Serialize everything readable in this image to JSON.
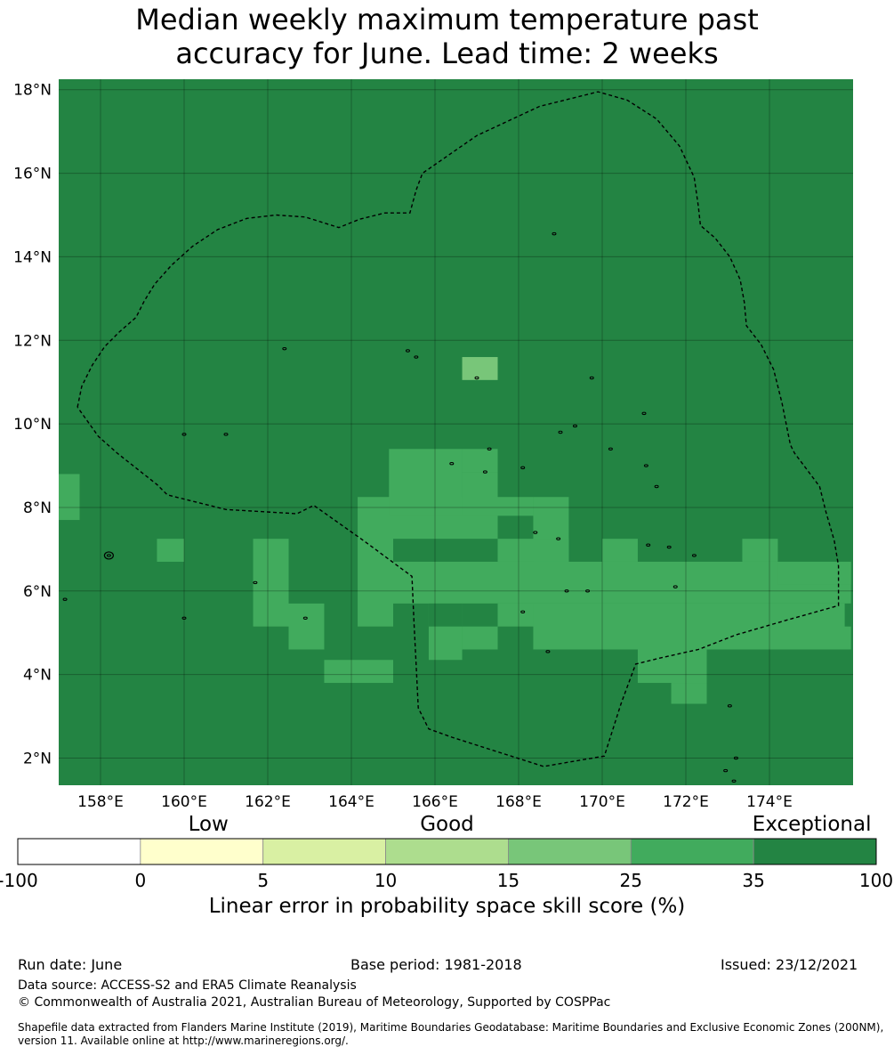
{
  "title_line1": "Median weekly maximum temperature past",
  "title_line2": "accuracy for June. Lead time: 2 weeks",
  "map": {
    "lon_range": [
      157.0,
      176.0
    ],
    "lat_range": [
      1.35,
      18.25
    ],
    "lon_ticks": [
      {
        "value": 158,
        "label": "158°E"
      },
      {
        "value": 160,
        "label": "160°E"
      },
      {
        "value": 162,
        "label": "162°E"
      },
      {
        "value": 164,
        "label": "164°E"
      },
      {
        "value": 166,
        "label": "166°E"
      },
      {
        "value": 168,
        "label": "168°E"
      },
      {
        "value": 170,
        "label": "170°E"
      },
      {
        "value": 172,
        "label": "172°E"
      },
      {
        "value": 174,
        "label": "174°E"
      }
    ],
    "lat_ticks": [
      {
        "value": 18,
        "label": "18°N"
      },
      {
        "value": 16,
        "label": "16°N"
      },
      {
        "value": 14,
        "label": "14°N"
      },
      {
        "value": 12,
        "label": "12°N"
      },
      {
        "value": 10,
        "label": "10°N"
      },
      {
        "value": 8,
        "label": "8°N"
      },
      {
        "value": 6,
        "label": "6°N"
      },
      {
        "value": 4,
        "label": "4°N"
      },
      {
        "value": 2,
        "label": "2°N"
      }
    ],
    "background_color": "#238443",
    "cells_25_35": [
      [
        157.0,
        157.5,
        7.7,
        8.8
      ],
      [
        159.35,
        160.0,
        6.7,
        7.25
      ],
      [
        161.65,
        162.5,
        5.15,
        7.25
      ],
      [
        162.5,
        163.35,
        4.6,
        5.7
      ],
      [
        163.35,
        165.0,
        3.8,
        4.35
      ],
      [
        164.15,
        165.0,
        5.15,
        8.25
      ],
      [
        165.0,
        167.5,
        7.25,
        8.25
      ],
      [
        164.9,
        166.65,
        7.8,
        9.4
      ],
      [
        166.65,
        167.5,
        7.8,
        8.85
      ],
      [
        166.65,
        167.5,
        8.85,
        9.4
      ],
      [
        165.0,
        175.95,
        5.7,
        6.7
      ],
      [
        167.5,
        168.35,
        7.8,
        8.25
      ],
      [
        168.35,
        169.2,
        6.7,
        8.25
      ],
      [
        167.5,
        169.2,
        6.7,
        7.25
      ],
      [
        166.65,
        167.5,
        4.6,
        5.7
      ],
      [
        165.85,
        166.65,
        4.35,
        5.7
      ],
      [
        167.5,
        170.0,
        5.15,
        5.7
      ],
      [
        168.35,
        175.95,
        4.6,
        5.7
      ],
      [
        170.0,
        170.85,
        6.7,
        7.25
      ],
      [
        173.35,
        174.2,
        6.7,
        7.25
      ],
      [
        170.85,
        172.5,
        3.8,
        4.6
      ],
      [
        171.65,
        172.5,
        3.3,
        3.8
      ],
      [
        174.2,
        175.95,
        6.15,
        6.7
      ]
    ],
    "cells_15_25": [
      [
        166.65,
        167.5,
        11.05,
        11.6
      ]
    ],
    "cells_35_100_inset": [
      [
        166.65,
        167.5,
        5.15,
        5.7
      ],
      [
        165.85,
        166.65,
        5.15,
        5.7
      ],
      [
        175.8,
        175.95,
        5.15,
        5.7
      ]
    ],
    "boundary": [
      [
        157.45,
        10.4
      ],
      [
        157.55,
        10.9
      ],
      [
        157.8,
        11.4
      ],
      [
        158.1,
        11.85
      ],
      [
        158.45,
        12.2
      ],
      [
        158.85,
        12.55
      ],
      [
        159.05,
        12.95
      ],
      [
        159.3,
        13.35
      ],
      [
        159.7,
        13.8
      ],
      [
        160.2,
        14.25
      ],
      [
        160.8,
        14.65
      ],
      [
        161.5,
        14.92
      ],
      [
        162.2,
        15.0
      ],
      [
        162.9,
        14.95
      ],
      [
        163.7,
        14.7
      ],
      [
        164.2,
        14.9
      ],
      [
        164.8,
        15.05
      ],
      [
        165.4,
        15.05
      ],
      [
        165.55,
        15.6
      ],
      [
        165.7,
        16.0
      ],
      [
        167.0,
        16.9
      ],
      [
        168.5,
        17.6
      ],
      [
        169.9,
        17.95
      ],
      [
        170.6,
        17.75
      ],
      [
        171.3,
        17.3
      ],
      [
        171.85,
        16.65
      ],
      [
        172.2,
        15.9
      ],
      [
        172.3,
        15.2
      ],
      [
        172.35,
        14.75
      ],
      [
        172.7,
        14.45
      ],
      [
        173.05,
        14.0
      ],
      [
        173.3,
        13.45
      ],
      [
        173.4,
        12.9
      ],
      [
        173.45,
        12.35
      ],
      [
        173.8,
        11.9
      ],
      [
        174.1,
        11.3
      ],
      [
        174.3,
        10.5
      ],
      [
        174.5,
        9.5
      ],
      [
        174.6,
        9.3
      ],
      [
        174.9,
        8.9
      ],
      [
        175.2,
        8.5
      ],
      [
        175.35,
        7.9
      ],
      [
        175.55,
        7.2
      ],
      [
        175.65,
        6.6
      ],
      [
        175.65,
        5.65
      ],
      [
        174.4,
        5.3
      ],
      [
        173.2,
        4.95
      ],
      [
        172.3,
        4.6
      ],
      [
        171.4,
        4.4
      ],
      [
        170.8,
        4.25
      ],
      [
        170.45,
        3.3
      ],
      [
        170.05,
        2.05
      ],
      [
        168.6,
        1.8
      ],
      [
        167.5,
        2.15
      ],
      [
        166.4,
        2.5
      ],
      [
        165.85,
        2.7
      ],
      [
        165.6,
        3.2
      ],
      [
        165.55,
        4.2
      ],
      [
        165.5,
        5.2
      ],
      [
        165.45,
        6.35
      ],
      [
        164.3,
        7.2
      ],
      [
        163.1,
        8.05
      ],
      [
        162.7,
        7.85
      ],
      [
        161.0,
        7.95
      ],
      [
        159.6,
        8.3
      ],
      [
        159.35,
        8.55
      ],
      [
        158.4,
        9.3
      ],
      [
        157.95,
        9.7
      ],
      [
        157.45,
        10.4
      ]
    ]
  },
  "colorbar": {
    "categories": [
      {
        "label": "Low",
        "center": 0.222
      },
      {
        "label": "Good",
        "center": 0.5
      },
      {
        "label": "Exceptional",
        "center": 0.925
      }
    ],
    "bins": [
      {
        "from": "-100",
        "to": "0",
        "color": "#ffffff"
      },
      {
        "from": "0",
        "to": "5",
        "color": "#ffffcc"
      },
      {
        "from": "5",
        "to": "10",
        "color": "#d9f0a3"
      },
      {
        "from": "10",
        "to": "15",
        "color": "#addd8e"
      },
      {
        "from": "15",
        "to": "25",
        "color": "#78c679"
      },
      {
        "from": "25",
        "to": "35",
        "color": "#41ab5d"
      },
      {
        "from": "35",
        "to": "100",
        "color": "#238443"
      }
    ],
    "tick_labels": [
      "-100",
      "0",
      "5",
      "10",
      "15",
      "25",
      "35",
      "100"
    ],
    "xlabel": "Linear error in probability space skill score (%)"
  },
  "footer": {
    "run_date": "Run date: June",
    "base_period": "Base period: 1981-2018",
    "issued": "Issued: 23/12/2021",
    "data_source": "Data source: ACCESS-S2 and ERA5 Climate Reanalysis",
    "copyright": "© Commonwealth of Australia 2021, Australian Bureau of Meteorology, Supported by COSPPac",
    "shapefile_line1": "Shapefile data extracted from Flanders Marine Institute (2019), Maritime Boundaries Geodatabase: Maritime Boundaries and Exclusive Economic Zones (200NM),",
    "shapefile_line2": "version 11. Available online at http://www.marineregions.org/."
  }
}
